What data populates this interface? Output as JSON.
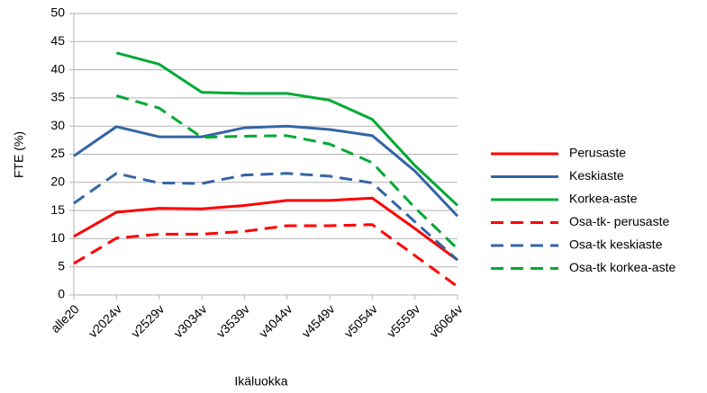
{
  "chart_data": {
    "type": "line",
    "xlabel": "Ikäluokka",
    "ylabel": "FTE (%)",
    "categories": [
      "alle20",
      "v2024v",
      "v2529v",
      "v3034v",
      "v3539v",
      "v4044v",
      "v4549v",
      "v5054v",
      "v5559v",
      "v6064v"
    ],
    "series": [
      {
        "name": "Perusaste",
        "color": "#ff0000",
        "dashed": false,
        "values": [
          10.4,
          14.7,
          15.4,
          15.3,
          15.9,
          16.8,
          16.8,
          17.2,
          11.8,
          6.2
        ]
      },
      {
        "name": "Keskiaste",
        "color": "#3465a4",
        "dashed": false,
        "values": [
          24.7,
          29.9,
          28.1,
          28.1,
          29.7,
          30.0,
          29.4,
          28.3,
          22.0,
          14.0
        ]
      },
      {
        "name": "Korkea-aste",
        "color": "#00a933",
        "dashed": false,
        "values": [
          null,
          43.0,
          41.0,
          36.0,
          35.8,
          35.8,
          34.6,
          31.2,
          23.0,
          15.9
        ]
      },
      {
        "name": "Osa-tk- perusaste",
        "color": "#ff0000",
        "dashed": true,
        "values": [
          5.6,
          10.1,
          10.8,
          10.8,
          11.3,
          12.3,
          12.3,
          12.5,
          7.0,
          1.5
        ]
      },
      {
        "name": "Osa-tk keskiaste",
        "color": "#3465a4",
        "dashed": true,
        "values": [
          16.3,
          21.6,
          19.9,
          19.8,
          21.3,
          21.6,
          21.1,
          19.9,
          13.0,
          6.2
        ]
      },
      {
        "name": "Osa-tk korkea-aste",
        "color": "#00a933",
        "dashed": true,
        "values": [
          null,
          35.4,
          33.2,
          28.0,
          28.2,
          28.3,
          26.8,
          23.5,
          15.5,
          8.2
        ]
      }
    ],
    "ylim": [
      0,
      50
    ],
    "yticks": [
      0,
      5,
      10,
      15,
      20,
      25,
      30,
      35,
      40,
      45,
      50
    ],
    "grid": true,
    "legend": "right"
  }
}
